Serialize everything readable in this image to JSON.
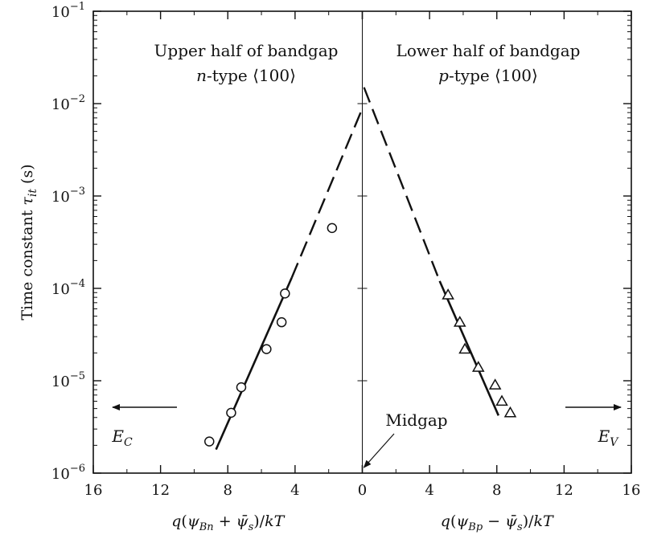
{
  "chart_data": {
    "type": "scatter",
    "y_scale": "log",
    "ylim": [
      1e-06,
      0.1
    ],
    "y_tick_values": [
      1e-06,
      1e-05,
      0.0001,
      0.001,
      0.01,
      0.1
    ],
    "y_tick_labels": [
      {
        "base": "10",
        "exp": "−6"
      },
      {
        "base": "10",
        "exp": "−5"
      },
      {
        "base": "10",
        "exp": "−4"
      },
      {
        "base": "10",
        "exp": "−3"
      },
      {
        "base": "10",
        "exp": "−2"
      },
      {
        "base": "10",
        "exp": "−1"
      }
    ],
    "ylabel": {
      "prefix": "Time constant ",
      "symbol": "τ",
      "subscript": "it",
      "suffix": " (s)"
    },
    "grid": false,
    "panels": [
      {
        "id": "n-type",
        "xlim": [
          16,
          0
        ],
        "x_ticks": [
          16,
          12,
          8,
          4,
          0
        ],
        "x_tick_labels": [
          "16",
          "12",
          "8",
          "4",
          "0"
        ],
        "xlabel": "q(ψBn + ψ̄s)/kT",
        "title": {
          "line1": "Upper half of bandgap",
          "line2_italic": "n",
          "line2_rest": "-type ⟨100⟩"
        },
        "edge_label": {
          "symbol": "E",
          "subscript": "C"
        },
        "series": [
          {
            "marker": "circle",
            "x": [
              9.1,
              7.8,
              7.2,
              5.7,
              4.8,
              4.6,
              1.8
            ],
            "y": [
              2.2e-06,
              4.5e-06,
              8.5e-06,
              2.2e-05,
              4.3e-05,
              8.8e-05,
              0.00045
            ]
          }
        ],
        "fit_line": {
          "x": [
            8.7,
            4.2
          ],
          "y": [
            1.8e-06,
            0.00013
          ]
        },
        "extrapolation": {
          "x": [
            4.2,
            0.1
          ],
          "y": [
            0.00013,
            0.008
          ]
        }
      },
      {
        "id": "p-type",
        "xlim": [
          0,
          16
        ],
        "x_ticks": [
          0,
          4,
          8,
          12,
          16
        ],
        "x_tick_labels": [
          "0",
          "4",
          "8",
          "12",
          "16"
        ],
        "xlabel": "q(ψBp − ψ̄s)/kT",
        "title": {
          "line1": "Lower half of bandgap",
          "line2_italic": "p",
          "line2_rest": "-type ⟨100⟩"
        },
        "edge_label": {
          "symbol": "E",
          "subscript": "V"
        },
        "series": [
          {
            "marker": "triangle",
            "x": [
              5.1,
              5.8,
              6.1,
              6.9,
              7.9,
              8.3,
              8.8
            ],
            "y": [
              8.5e-05,
              4.3e-05,
              2.2e-05,
              1.4e-05,
              9e-06,
              6e-06,
              4.5e-06
            ]
          }
        ],
        "fit_line": {
          "x": [
            4.6,
            8.1
          ],
          "y": [
            0.00012,
            4.2e-06
          ]
        },
        "extrapolation": {
          "x": [
            0.1,
            4.6
          ],
          "y": [
            0.015,
            0.00012
          ]
        }
      }
    ],
    "annotations": [
      {
        "text": "Midgap",
        "points_to": {
          "x": 0,
          "y": 1e-06
        }
      }
    ]
  }
}
